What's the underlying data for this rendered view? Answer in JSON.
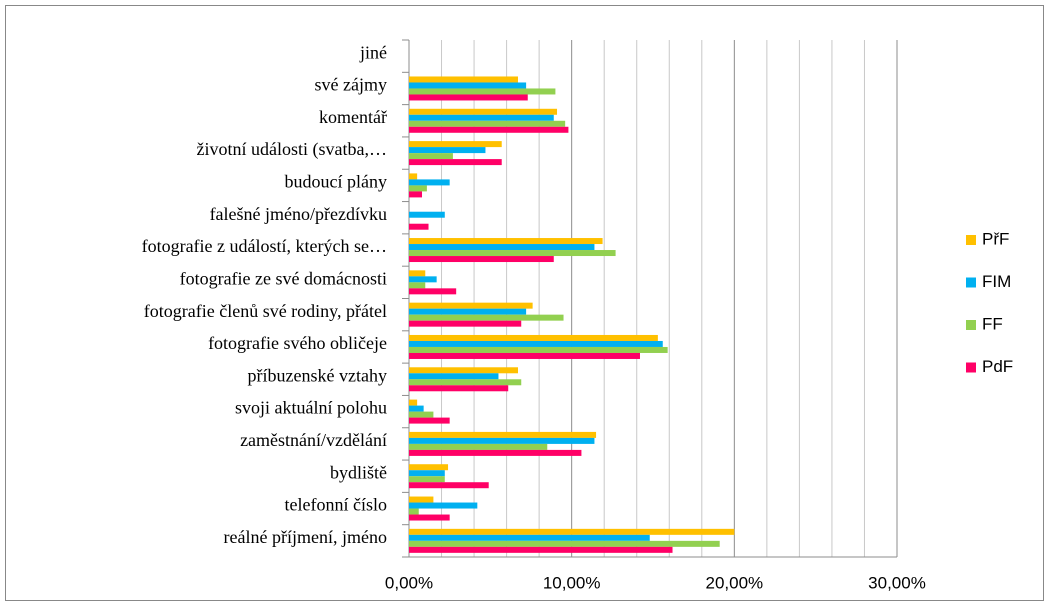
{
  "chart_data": {
    "type": "hbar",
    "categories": [
      "reálné příjmení, jméno",
      "telefonní číslo",
      "bydliště",
      "zaměstnání/vzdělání",
      "svoji aktuální polohu",
      "příbuzenské vztahy",
      "fotografie svého obličeje",
      "fotografie členů své rodiny, přátel",
      "fotografie ze své domácnosti",
      "fotografie z událostí, kterých se…",
      "falešné jméno/přezdívku",
      "budoucí plány",
      "životní události (svatba,…",
      "komentář",
      "své zájmy",
      "jiné"
    ],
    "series": [
      {
        "name": "PřF",
        "color": "#ffc000",
        "values": [
          20.0,
          1.5,
          2.4,
          11.5,
          0.5,
          6.7,
          15.3,
          7.6,
          1.0,
          11.9,
          0,
          0.5,
          5.7,
          9.1,
          6.7,
          0
        ]
      },
      {
        "name": "FIM",
        "color": "#00b0f0",
        "values": [
          14.8,
          4.2,
          2.2,
          11.4,
          0.9,
          5.5,
          15.6,
          7.2,
          1.7,
          11.4,
          2.2,
          2.5,
          4.7,
          8.9,
          7.2,
          0
        ]
      },
      {
        "name": "FF",
        "color": "#92d050",
        "values": [
          19.1,
          0.6,
          2.2,
          8.5,
          1.5,
          6.9,
          15.9,
          9.5,
          1.0,
          12.7,
          0,
          1.1,
          2.7,
          9.6,
          9.0,
          0
        ]
      },
      {
        "name": "PdF",
        "color": "#ff0066",
        "values": [
          16.2,
          2.5,
          4.9,
          10.6,
          2.5,
          6.1,
          14.2,
          6.9,
          2.9,
          8.9,
          1.2,
          0.8,
          5.7,
          9.8,
          7.3,
          0
        ]
      }
    ],
    "xlim": [
      0,
      30
    ],
    "xticks": [
      {
        "value": 0,
        "label": "0,00%"
      },
      {
        "value": 10,
        "label": "10,00%"
      },
      {
        "value": 20,
        "label": "20,00%"
      },
      {
        "value": 30,
        "label": "30,00%"
      }
    ],
    "xminorticks": [
      2,
      4,
      6,
      8,
      12,
      14,
      16,
      18,
      22,
      24,
      26,
      28
    ],
    "grid": true,
    "legend": "right"
  }
}
